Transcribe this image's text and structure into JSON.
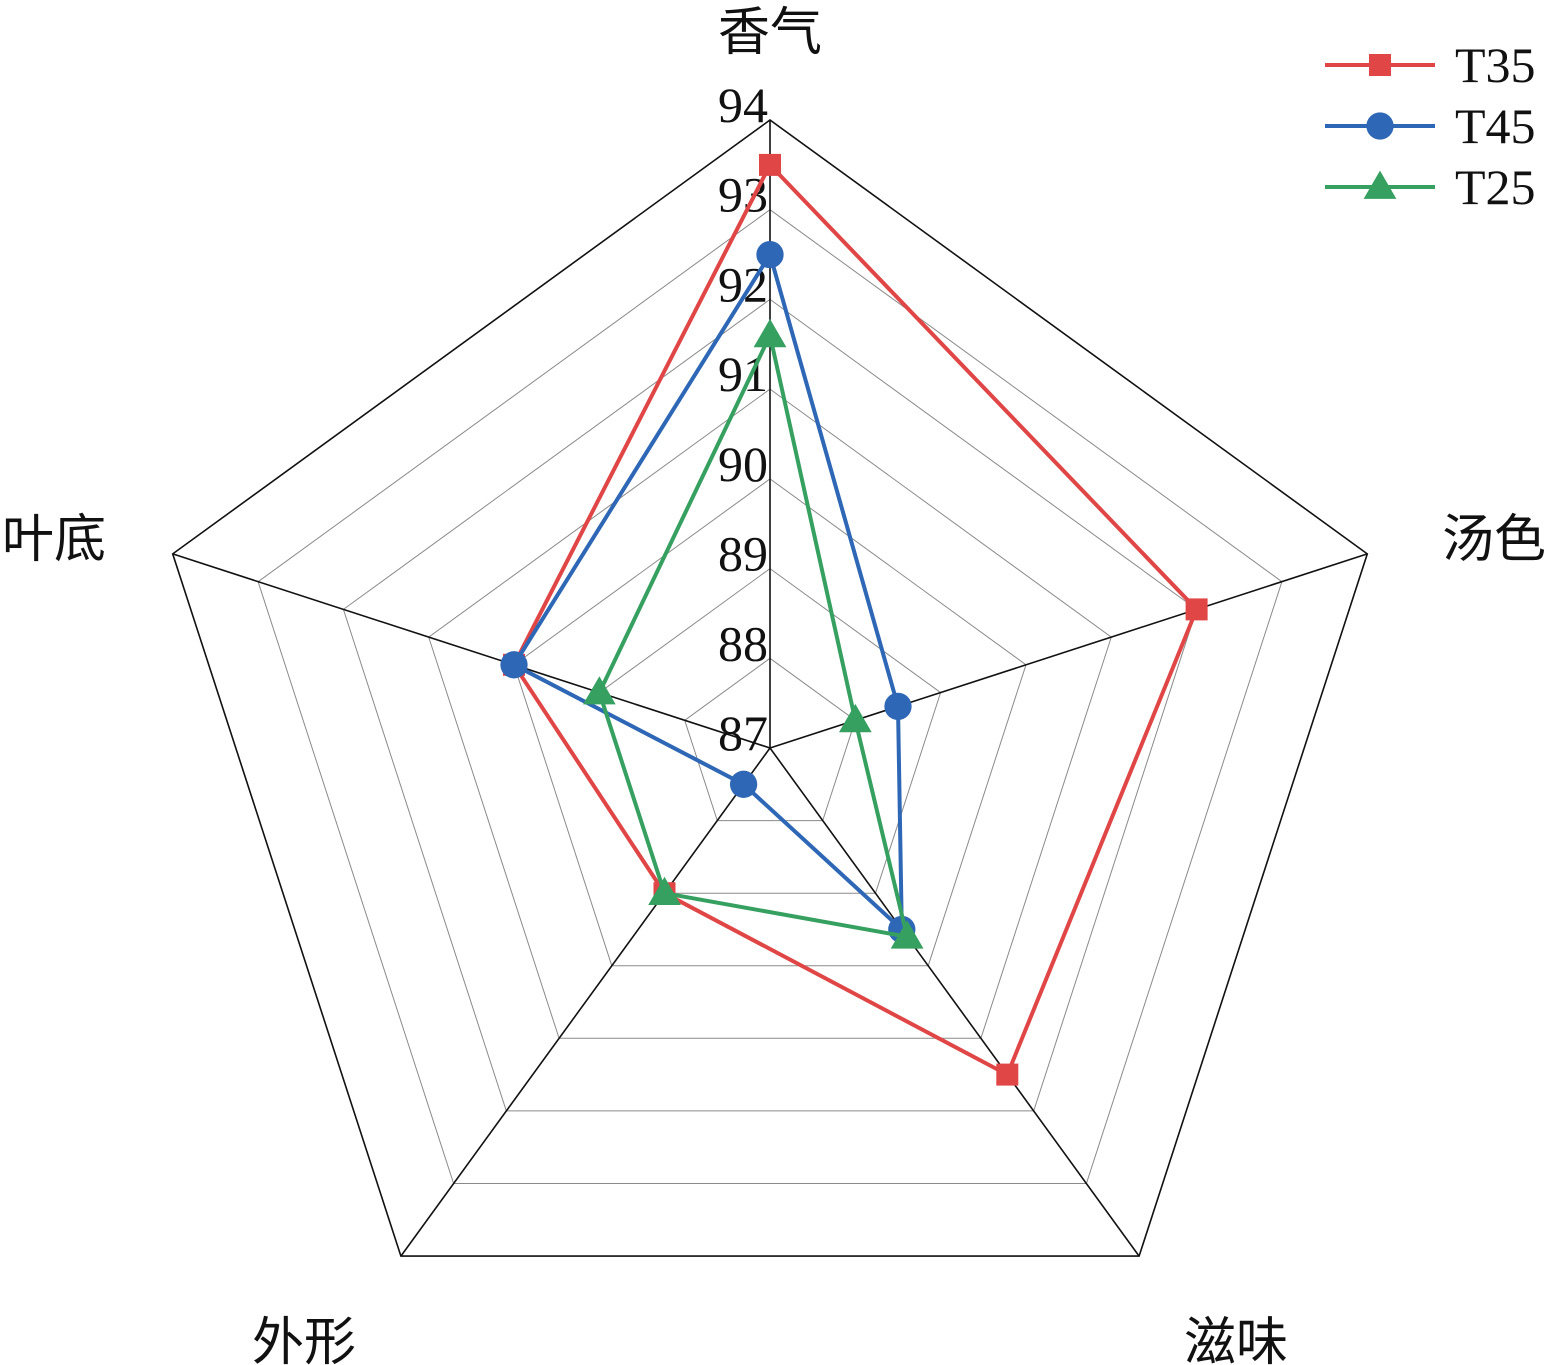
{
  "chart_data": {
    "type": "radar",
    "axes": [
      "香气",
      "汤色",
      "滋味",
      "外形",
      "叶底"
    ],
    "range": [
      87,
      94
    ],
    "ticks": [
      87,
      88,
      89,
      90,
      91,
      92,
      93,
      94
    ],
    "grid": true,
    "legend_position": "top-right",
    "series": [
      {
        "name": "T35",
        "color": "#e04646",
        "marker": "square",
        "values": [
          93.5,
          92.0,
          91.5,
          89.0,
          90.0
        ]
      },
      {
        "name": "T45",
        "color": "#2e67b5",
        "marker": "circle",
        "values": [
          92.5,
          88.5,
          89.5,
          87.5,
          90.0
        ]
      },
      {
        "name": "T25",
        "color": "#36a060",
        "marker": "triangle",
        "values": [
          91.6,
          88.0,
          89.6,
          89.0,
          89.0
        ]
      }
    ]
  }
}
